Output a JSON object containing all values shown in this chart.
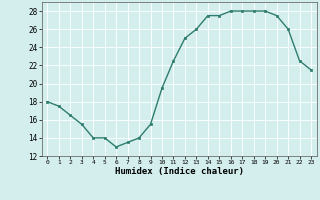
{
  "x": [
    0,
    1,
    2,
    3,
    4,
    5,
    6,
    7,
    8,
    9,
    10,
    11,
    12,
    13,
    14,
    15,
    16,
    17,
    18,
    19,
    20,
    21,
    22,
    23
  ],
  "y": [
    18,
    17.5,
    16.5,
    15.5,
    14,
    14,
    13,
    13.5,
    14,
    15.5,
    19.5,
    22.5,
    25,
    26,
    27.5,
    27.5,
    28,
    28,
    28,
    28,
    27.5,
    26,
    22.5,
    21.5
  ],
  "xlabel": "Humidex (Indice chaleur)",
  "line_color": "#2e7d6e",
  "marker_color": "#2e7d6e",
  "bg_color": "#d4eeee",
  "grid_color": "#ffffff",
  "xlim": [
    -0.5,
    23.5
  ],
  "ylim": [
    12,
    29
  ],
  "yticks": [
    12,
    14,
    16,
    18,
    20,
    22,
    24,
    26,
    28
  ],
  "xticks": [
    0,
    1,
    2,
    3,
    4,
    5,
    6,
    7,
    8,
    9,
    10,
    11,
    12,
    13,
    14,
    15,
    16,
    17,
    18,
    19,
    20,
    21,
    22,
    23
  ],
  "xtick_labels": [
    "0",
    "1",
    "2",
    "3",
    "4",
    "5",
    "6",
    "7",
    "8",
    "9",
    "10",
    "11",
    "12",
    "13",
    "14",
    "15",
    "16",
    "17",
    "18",
    "19",
    "20",
    "21",
    "22",
    "23"
  ]
}
